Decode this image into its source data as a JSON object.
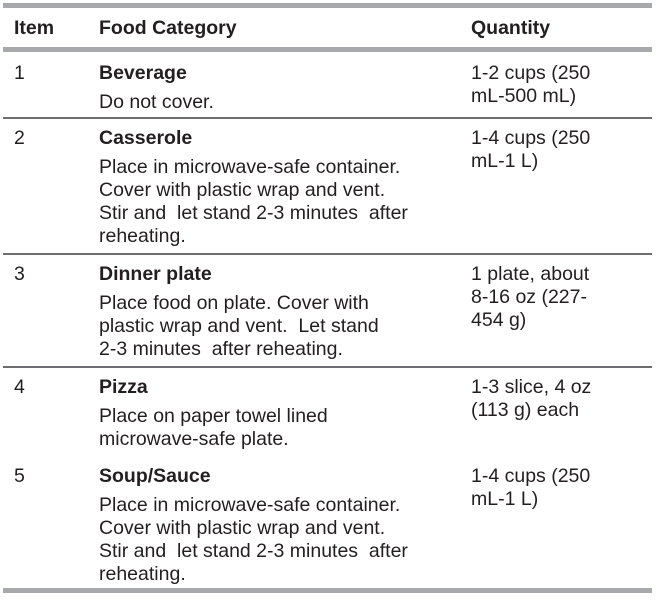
{
  "header": {
    "item": "Item",
    "category": "Food Category",
    "quantity": "Quantity"
  },
  "rows": [
    {
      "item": "1",
      "title": "Beverage",
      "desc": [
        "Do not cover."
      ],
      "qty": [
        "1-2 cups (250",
        "mL-500 mL)"
      ]
    },
    {
      "item": "2",
      "title": "Casserole",
      "desc": [
        "Place in microwave-safe container.",
        "Cover with plastic wrap and vent.",
        "Stir and  let stand 2-3 minutes  after",
        "reheating."
      ],
      "qty": [
        "1-4 cups (250",
        "mL-1 L)"
      ]
    },
    {
      "item": "3",
      "title": "Dinner plate",
      "desc": [
        "Place food on plate. Cover with",
        "plastic wrap and vent.  Let stand",
        "2-3 minutes  after reheating."
      ],
      "qty": [
        "1 plate, about",
        "8-16 oz (227-",
        "454 g)"
      ]
    },
    {
      "item": "4",
      "title": "Pizza",
      "desc": [
        "Place on paper towel lined",
        "microwave-safe plate."
      ],
      "qty": [
        "1-3 slice, 4 oz",
        "(113 g) each"
      ]
    },
    {
      "item": "5",
      "title": "Soup/Sauce",
      "desc": [
        "Place in microwave-safe container.",
        "Cover with plastic wrap and vent.",
        "Stir and  let stand 2-3 minutes  after",
        "reheating."
      ],
      "qty": [
        "1-4 cups (250",
        "mL-1 L)"
      ]
    }
  ]
}
